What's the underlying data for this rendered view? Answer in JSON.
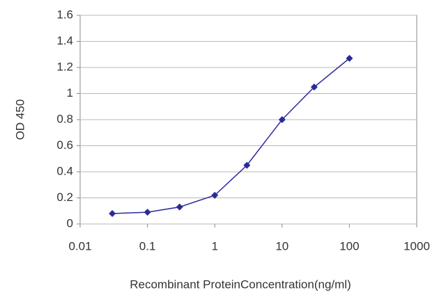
{
  "chart_data": {
    "type": "line",
    "xlabel": "Recombinant ProteinConcentration(ng/ml)",
    "ylabel": "OD 450",
    "xscale": "log",
    "xlim": [
      0.01,
      1000
    ],
    "xticks": [
      0.01,
      0.1,
      1,
      10,
      100,
      1000
    ],
    "ylim": [
      0,
      1.6
    ],
    "yticks": [
      0,
      0.2,
      0.4,
      0.6,
      0.8,
      1,
      1.2,
      1.4,
      1.6
    ],
    "grid": true,
    "series": [
      {
        "color": "#2a2a9a",
        "x": [
          0.03,
          0.1,
          0.3,
          1,
          3,
          10,
          30,
          100
        ],
        "values": [
          0.08,
          0.09,
          0.13,
          0.22,
          0.45,
          0.8,
          1.05,
          1.27
        ]
      }
    ]
  }
}
